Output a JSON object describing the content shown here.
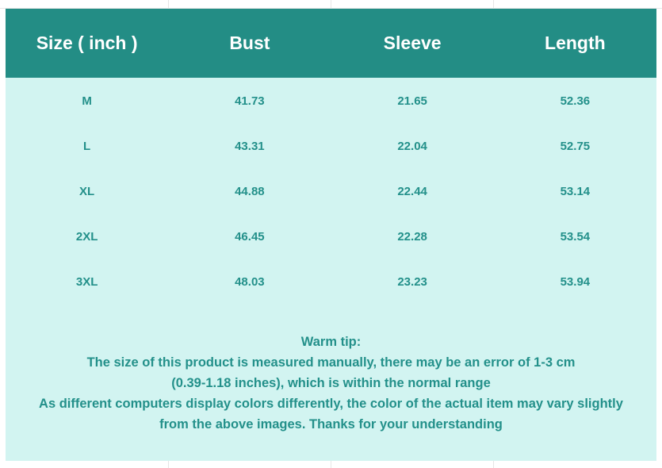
{
  "table": {
    "headers": [
      "Size ( inch )",
      "Bust",
      "Sleeve",
      "Length"
    ],
    "rows": [
      [
        "M",
        "41.73",
        "21.65",
        "52.36"
      ],
      [
        "L",
        "43.31",
        "22.04",
        "52.75"
      ],
      [
        "XL",
        "44.88",
        "22.44",
        "53.14"
      ],
      [
        "2XL",
        "46.45",
        "22.28",
        "53.54"
      ],
      [
        "3XL",
        "48.03",
        "23.23",
        "53.94"
      ]
    ]
  },
  "tip": {
    "lines": [
      "Warm tip:",
      "The size of this product is measured manually, there may be an error of 1-3 cm",
      "(0.39-1.18 inches), which is within the normal range",
      "As different computers display colors differently, the color of the actual item may vary slightly",
      "from the above images. Thanks for your understanding"
    ]
  },
  "colors": {
    "header_bg": "#238d85",
    "body_bg": "#d2f4f1",
    "text": "#23908a"
  }
}
